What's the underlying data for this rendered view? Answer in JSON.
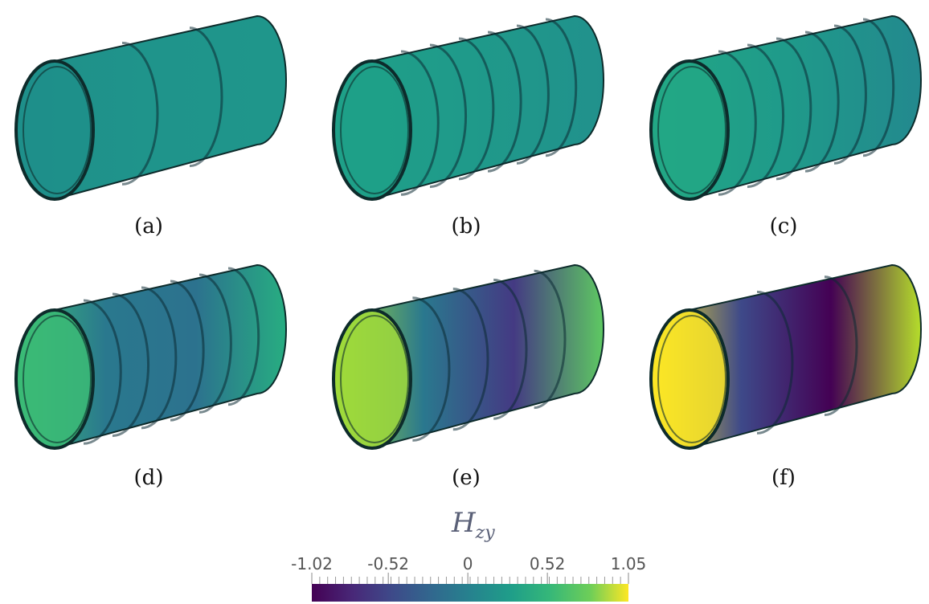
{
  "panels": [
    {
      "label": "(a)"
    },
    {
      "label": "(b)"
    },
    {
      "label": "(c)"
    },
    {
      "label": "(d)"
    },
    {
      "label": "(e)"
    },
    {
      "label": "(f)"
    }
  ],
  "colorbar": {
    "title": "H",
    "title_subscript": "zy",
    "range": [
      -1.02,
      1.05
    ],
    "ticks": [
      -1.02,
      -0.52,
      0,
      0.52,
      1.05
    ]
  }
}
